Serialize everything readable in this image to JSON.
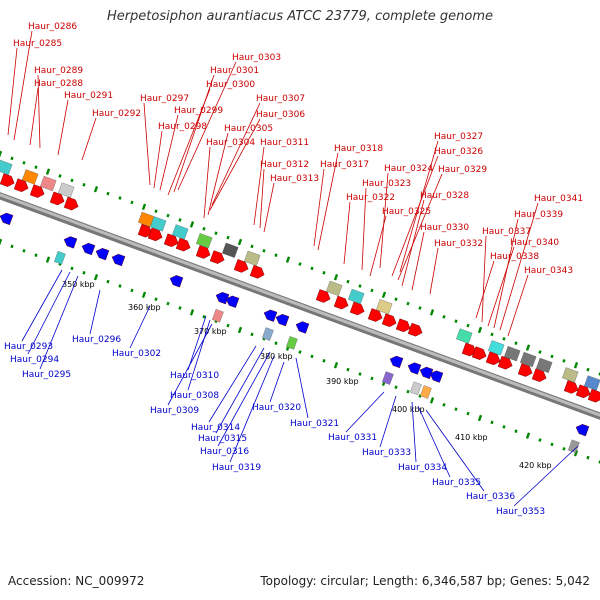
{
  "title": "Herpetosiphon aurantiacus ATCC 23779, complete genome",
  "footer": {
    "accession": "Accession: NC_009972",
    "summary": "Topology: circular; Length: 6,346,587 bp; Genes: 5,042"
  },
  "colors": {
    "forward_label": "#cc0000",
    "reverse_label": "#0000cc",
    "forward_gene": "#ff0000",
    "reverse_gene": "#0000ff",
    "backbone": "#999999",
    "tick": "#008800"
  },
  "scale_labels": [
    "350 kbp",
    "360 kbp",
    "370 kbp",
    "380 kbp",
    "390 kbp",
    "400 kbp",
    "410 kbp",
    "420 kbp"
  ],
  "forward_labels": [
    "Haur_0286",
    "Haur_0285",
    "Haur_0289",
    "Haur_0288",
    "Haur_0291",
    "Haur_0292",
    "Haur_0303",
    "Haur_0301",
    "Haur_0300",
    "Haur_0297",
    "Haur_0299",
    "Haur_0298",
    "Haur_0307",
    "Haur_0306",
    "Haur_0305",
    "Haur_0304",
    "Haur_0311",
    "Haur_0312",
    "Haur_0313",
    "Haur_0318",
    "Haur_0317",
    "Haur_0327",
    "Haur_0326",
    "Haur_0324",
    "Haur_0329",
    "Haur_0323",
    "Haur_0322",
    "Haur_0328",
    "Haur_0325",
    "Haur_0330",
    "Haur_0332",
    "Haur_0341",
    "Haur_0339",
    "Haur_0337",
    "Haur_0340",
    "Haur_0338",
    "Haur_0343"
  ],
  "reverse_labels": [
    "Haur_0293",
    "Haur_0294",
    "Haur_0295",
    "Haur_0296",
    "Haur_0302",
    "Haur_0310",
    "Haur_0308",
    "Haur_0309",
    "Haur_0314",
    "Haur_0315",
    "Haur_0316",
    "Haur_0319",
    "Haur_0320",
    "Haur_0321",
    "Haur_0331",
    "Haur_0333",
    "Haur_0334",
    "Haur_0335",
    "Haur_0336",
    "Haur_0353"
  ]
}
